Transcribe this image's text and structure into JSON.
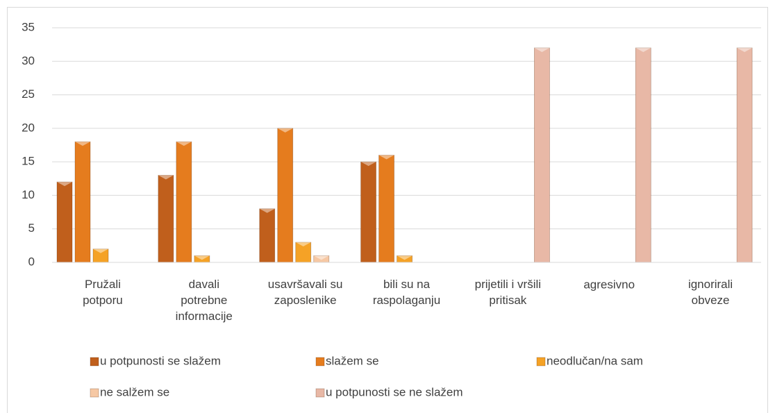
{
  "chart_data": {
    "type": "bar",
    "categories": [
      "Pružali\npotporu",
      "davali\npotrebne\ninformacije",
      "usavršavali su\nzaposlenike",
      "bili su na\nraspolaganju",
      "prijetili i vršili\npritisak",
      "agresivno",
      "ignorirali\nobveze"
    ],
    "series": [
      {
        "name": "u potpunosti se slažem",
        "color": "#c05f1c",
        "values": [
          12,
          13,
          8,
          15,
          0,
          0,
          0
        ]
      },
      {
        "name": "slažem se",
        "color": "#e57c1e",
        "values": [
          18,
          18,
          20,
          16,
          0,
          0,
          0
        ]
      },
      {
        "name": "neodlučan/na sam",
        "color": "#f5a226",
        "values": [
          2,
          1,
          3,
          1,
          0,
          0,
          0
        ]
      },
      {
        "name": "ne salžem se",
        "color": "#f6c8a4",
        "values": [
          0,
          0,
          1,
          0,
          0,
          0,
          0
        ]
      },
      {
        "name": "u potpunosti se ne slažem",
        "color": "#e8b8a6",
        "values": [
          0,
          0,
          0,
          0,
          32,
          32,
          32
        ]
      }
    ],
    "ylim": [
      0,
      35
    ],
    "yticks": [
      0,
      5,
      10,
      15,
      20,
      25,
      30,
      35
    ],
    "grid": true,
    "legend": "bottom"
  }
}
